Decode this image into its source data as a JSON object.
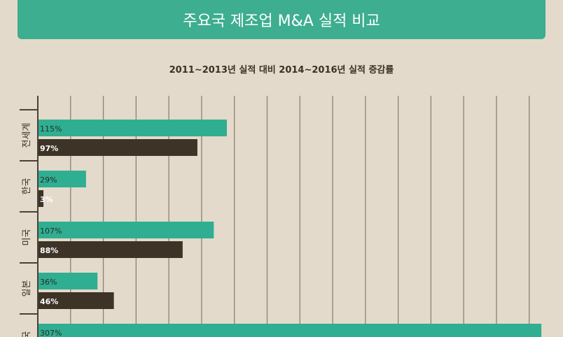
{
  "header": {
    "title": "주요국 제조업 M&A 실적 비교"
  },
  "chart_data": {
    "type": "bar",
    "orientation": "horizontal",
    "title": "2011~2013년 실적 대비 2014~2016년 실적 증감률",
    "categories": [
      "전세계",
      "한국",
      "미국",
      "일본",
      "중국"
    ],
    "series": [
      {
        "values": [
          115,
          29,
          107,
          36,
          307
        ],
        "labels": [
          "115%",
          "29%",
          "107%",
          "36%",
          "307%"
        ],
        "color": "#2fae92"
      },
      {
        "values": [
          97,
          3,
          88,
          46,
          null
        ],
        "labels": [
          "97%",
          "3%",
          "88%",
          "46%",
          ""
        ],
        "color": "#3d3427"
      }
    ],
    "xlim": [
      0,
      300
    ],
    "grid": true,
    "colors": {
      "banner": "#3dae8f",
      "background": "#e4dacb",
      "gridline": "#8a8276",
      "axis": "#4a4036"
    }
  }
}
